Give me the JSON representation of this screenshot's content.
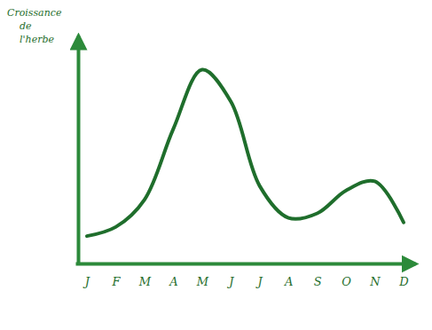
{
  "chart_data": {
    "type": "line",
    "y_label": "Croissance de l'herbe",
    "categories": [
      "J",
      "F",
      "M",
      "A",
      "M",
      "J",
      "J",
      "A",
      "S",
      "O",
      "N",
      "D"
    ],
    "values": [
      12,
      16,
      28,
      59,
      85,
      71,
      34,
      20,
      22,
      32,
      36,
      18
    ],
    "color": "#1f6e2c",
    "ylim": [
      0,
      100
    ],
    "yticks": [],
    "tick_labels": "x",
    "grid": false
  }
}
